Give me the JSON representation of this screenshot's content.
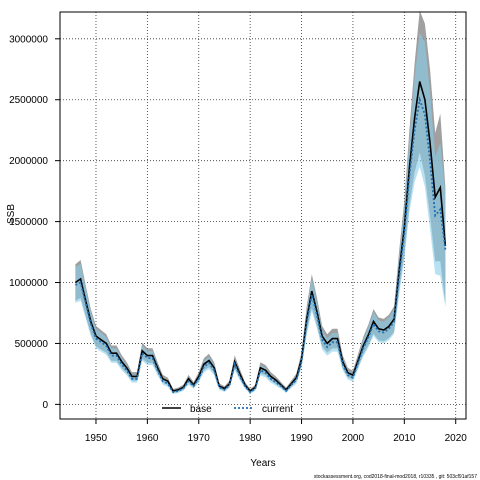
{
  "chart_data": {
    "type": "line",
    "xlabel": "Years",
    "ylabel": "SSB",
    "xlim": [
      1943,
      2022
    ],
    "ylim": [
      -120000,
      3220000
    ],
    "xticks": [
      1950,
      1960,
      1970,
      1980,
      1990,
      2000,
      2010,
      2020
    ],
    "yticks": [
      0,
      500000,
      1000000,
      1500000,
      2000000,
      2500000,
      3000000
    ],
    "grid": true,
    "legend_position": "bottom-center",
    "x": [
      1946,
      1947,
      1948,
      1949,
      1950,
      1951,
      1952,
      1953,
      1954,
      1955,
      1956,
      1957,
      1958,
      1959,
      1960,
      1961,
      1962,
      1963,
      1964,
      1965,
      1966,
      1967,
      1968,
      1969,
      1970,
      1971,
      1972,
      1973,
      1974,
      1975,
      1976,
      1977,
      1978,
      1979,
      1980,
      1981,
      1982,
      1983,
      1984,
      1985,
      1986,
      1987,
      1988,
      1989,
      1990,
      1991,
      1992,
      1993,
      1994,
      1995,
      1996,
      1997,
      1998,
      1999,
      2000,
      2001,
      2002,
      2003,
      2004,
      2005,
      2006,
      2007,
      2008,
      2009,
      2010,
      2011,
      2012,
      2013,
      2014,
      2015,
      2016,
      2017,
      2018
    ],
    "series": [
      {
        "name": "base",
        "color": "#000000",
        "style": "solid",
        "values": [
          1000000,
          1030000,
          850000,
          680000,
          560000,
          530000,
          500000,
          420000,
          420000,
          350000,
          300000,
          230000,
          230000,
          440000,
          400000,
          400000,
          300000,
          210000,
          190000,
          110000,
          120000,
          140000,
          210000,
          160000,
          230000,
          330000,
          360000,
          300000,
          150000,
          130000,
          170000,
          350000,
          250000,
          160000,
          110000,
          140000,
          300000,
          280000,
          230000,
          200000,
          160000,
          120000,
          170000,
          220000,
          370000,
          700000,
          930000,
          760000,
          560000,
          500000,
          540000,
          540000,
          350000,
          260000,
          240000,
          360000,
          480000,
          570000,
          680000,
          620000,
          610000,
          640000,
          700000,
          1100000,
          1450000,
          1950000,
          2350000,
          2650000,
          2500000,
          2150000,
          1700000,
          1780000,
          1300000
        ]
      },
      {
        "name": "current",
        "color": "#1f6fb4",
        "style": "dotted",
        "values": [
          980000,
          1000000,
          830000,
          660000,
          540000,
          510000,
          480000,
          400000,
          400000,
          330000,
          280000,
          210000,
          210000,
          420000,
          380000,
          380000,
          280000,
          190000,
          170000,
          100000,
          110000,
          130000,
          190000,
          150000,
          210000,
          310000,
          340000,
          280000,
          140000,
          120000,
          160000,
          330000,
          230000,
          150000,
          100000,
          130000,
          280000,
          260000,
          210000,
          180000,
          150000,
          110000,
          160000,
          200000,
          350000,
          670000,
          900000,
          730000,
          530000,
          470000,
          510000,
          510000,
          330000,
          240000,
          220000,
          340000,
          460000,
          550000,
          660000,
          600000,
          590000,
          620000,
          680000,
          1060000,
          1400000,
          1880000,
          2250000,
          2500000,
          2380000,
          2000000,
          1550000,
          1600000,
          1270000
        ]
      }
    ]
  },
  "legend": {
    "items": [
      {
        "label": "base",
        "color": "#000000",
        "style": "solid"
      },
      {
        "label": "current",
        "color": "#1f6fb4",
        "style": "dotted"
      }
    ]
  },
  "colors": {
    "band_base": "#808080",
    "band_current": "#87ceeb"
  },
  "footer": {
    "text": "stockassessment.org, cod2018-final-mod2018, r10335 , git: 503cf91af157"
  }
}
